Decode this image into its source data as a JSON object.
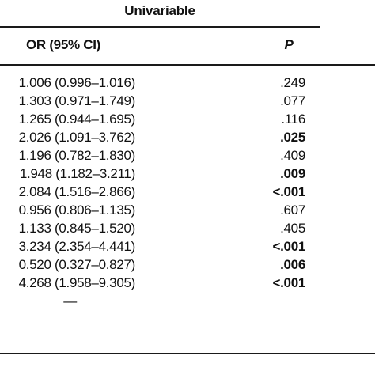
{
  "table": {
    "group_header": "Univariable",
    "columns": {
      "or": "OR (95% CI)",
      "p": "P"
    },
    "rows": [
      {
        "or": "1.006 (0.996–1.016)",
        "p": ".249",
        "significant": false
      },
      {
        "or": "1.303 (0.971–1.749)",
        "p": ".077",
        "significant": false
      },
      {
        "or": "1.265 (0.944–1.695)",
        "p": ".116",
        "significant": false
      },
      {
        "or": "2.026 (1.091–3.762)",
        "p": ".025",
        "significant": true
      },
      {
        "or": "1.196 (0.782–1.830)",
        "p": ".409",
        "significant": false
      },
      {
        "or": "1.948 (1.182–3.211)",
        "p": ".009",
        "significant": true
      },
      {
        "or": "2.084 (1.516–2.866)",
        "p": "<.001",
        "significant": true
      },
      {
        "or": "0.956 (0.806–1.135)",
        "p": ".607",
        "significant": false
      },
      {
        "or": "1.133 (0.845–1.520)",
        "p": ".405",
        "significant": false
      },
      {
        "or": "3.234 (2.354–4.441)",
        "p": "<.001",
        "significant": true
      },
      {
        "or": "0.520 (0.327–0.827)",
        "p": ".006",
        "significant": true
      },
      {
        "or": "4.268 (1.958–9.305)",
        "p": "<.001",
        "significant": true
      },
      {
        "or": "—",
        "p": "",
        "significant": false
      }
    ]
  }
}
